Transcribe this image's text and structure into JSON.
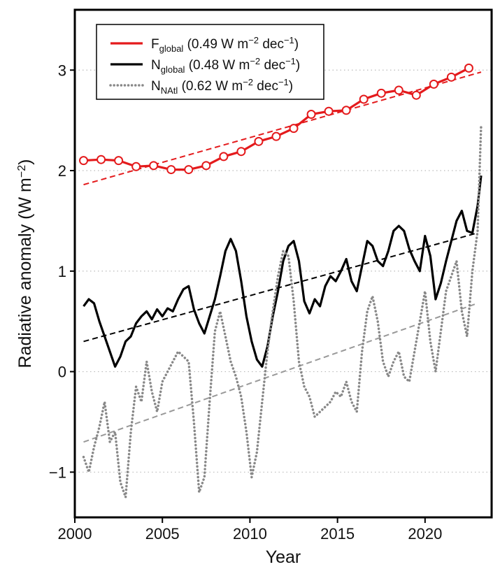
{
  "chart_data": {
    "type": "line",
    "xlabel": "Year",
    "ylabel": {
      "base": "Radiative anomaly (W m",
      "sup": "−2",
      "close": ")"
    },
    "xlim": [
      2000,
      2023.8
    ],
    "ylim": [
      -1.45,
      3.6
    ],
    "x_ticks": [
      2000,
      2005,
      2010,
      2015,
      2020
    ],
    "x_tick_labels": [
      "2000",
      "2005",
      "2010",
      "2015",
      "2020"
    ],
    "y_ticks": [
      -1,
      0,
      1,
      2,
      3
    ],
    "y_tick_labels": [
      "−1",
      "0",
      "1",
      "2",
      "3"
    ],
    "grid": "horizontal dotted",
    "legend_position": "top-left",
    "colors": {
      "F_global": "#e41a1c",
      "N_global": "#000000",
      "N_NAtl": "#888888",
      "N_NAtl_trend": "#999999"
    },
    "series": [
      {
        "key": "F_global",
        "legend": {
          "symbol": "F",
          "sub": "global",
          "pre": " (0.49 W m",
          "sup": "−2",
          "mid": " dec",
          "sup2": "−1",
          "post": ")"
        },
        "style": "solid-markers",
        "x": [
          2000.5,
          2001.5,
          2002.5,
          2003.5,
          2004.5,
          2005.5,
          2006.5,
          2007.5,
          2008.5,
          2009.5,
          2010.5,
          2011.5,
          2012.5,
          2013.5,
          2014.5,
          2015.5,
          2016.5,
          2017.5,
          2018.5,
          2019.5,
          2020.5,
          2021.5,
          2022.5
        ],
        "values": [
          2.1,
          2.11,
          2.1,
          2.04,
          2.05,
          2.01,
          2.01,
          2.05,
          2.14,
          2.19,
          2.29,
          2.34,
          2.42,
          2.56,
          2.59,
          2.6,
          2.71,
          2.77,
          2.8,
          2.75,
          2.86,
          2.93,
          3.02
        ],
        "trend": {
          "x": [
            2000.5,
            2023.2
          ],
          "y": [
            1.86,
            2.98
          ]
        }
      },
      {
        "key": "N_global",
        "legend": {
          "symbol": "N",
          "sub": "global",
          "pre": " (0.48 W m",
          "sup": "−2",
          "mid": " dec",
          "sup2": "−1",
          "post": ")"
        },
        "style": "solid",
        "x": [
          2000.5,
          2000.8,
          2001.1,
          2001.4,
          2001.7,
          2002.0,
          2002.3,
          2002.6,
          2002.9,
          2003.2,
          2003.5,
          2003.8,
          2004.1,
          2004.4,
          2004.7,
          2005.0,
          2005.3,
          2005.6,
          2005.9,
          2006.2,
          2006.5,
          2006.8,
          2007.1,
          2007.4,
          2007.7,
          2008.0,
          2008.3,
          2008.6,
          2008.9,
          2009.2,
          2009.5,
          2009.8,
          2010.1,
          2010.4,
          2010.7,
          2011.0,
          2011.3,
          2011.6,
          2011.9,
          2012.2,
          2012.5,
          2012.8,
          2013.1,
          2013.4,
          2013.7,
          2014.0,
          2014.3,
          2014.6,
          2014.9,
          2015.2,
          2015.5,
          2015.8,
          2016.1,
          2016.4,
          2016.7,
          2017.0,
          2017.3,
          2017.6,
          2017.9,
          2018.2,
          2018.5,
          2018.8,
          2019.1,
          2019.4,
          2019.7,
          2020.0,
          2020.3,
          2020.6,
          2020.9,
          2021.2,
          2021.5,
          2021.8,
          2022.1,
          2022.4,
          2022.7,
          2023.0,
          2023.2
        ],
        "values": [
          0.65,
          0.72,
          0.68,
          0.5,
          0.35,
          0.2,
          0.05,
          0.15,
          0.3,
          0.35,
          0.48,
          0.55,
          0.6,
          0.52,
          0.62,
          0.55,
          0.63,
          0.6,
          0.72,
          0.82,
          0.85,
          0.62,
          0.48,
          0.38,
          0.55,
          0.72,
          0.95,
          1.2,
          1.32,
          1.2,
          0.9,
          0.55,
          0.3,
          0.12,
          0.05,
          0.25,
          0.55,
          0.8,
          1.1,
          1.25,
          1.3,
          1.1,
          0.7,
          0.58,
          0.72,
          0.65,
          0.85,
          0.95,
          0.9,
          1.0,
          1.12,
          0.9,
          0.8,
          1.05,
          1.3,
          1.25,
          1.1,
          1.05,
          1.2,
          1.4,
          1.45,
          1.4,
          1.22,
          1.1,
          1.0,
          1.35,
          1.15,
          0.72,
          0.88,
          1.1,
          1.3,
          1.5,
          1.6,
          1.4,
          1.38,
          1.65,
          1.95
        ],
        "trend": {
          "x": [
            2000.5,
            2023.0
          ],
          "y": [
            0.3,
            1.38
          ]
        }
      },
      {
        "key": "N_NAtl",
        "legend": {
          "symbol": "N",
          "sub": "NAtl",
          "pre": " (0.62 W m",
          "sup": "−2",
          "mid": " dec",
          "sup2": "−1",
          "post": ")"
        },
        "style": "dotted",
        "x": [
          2000.5,
          2000.8,
          2001.1,
          2001.4,
          2001.7,
          2002.0,
          2002.3,
          2002.6,
          2002.9,
          2003.2,
          2003.5,
          2003.8,
          2004.1,
          2004.4,
          2004.7,
          2005.0,
          2005.3,
          2005.6,
          2005.9,
          2006.2,
          2006.5,
          2006.8,
          2007.1,
          2007.4,
          2007.7,
          2008.0,
          2008.3,
          2008.6,
          2008.9,
          2009.2,
          2009.5,
          2009.8,
          2010.1,
          2010.4,
          2010.7,
          2011.0,
          2011.3,
          2011.6,
          2011.9,
          2012.2,
          2012.5,
          2012.8,
          2013.1,
          2013.4,
          2013.7,
          2014.0,
          2014.3,
          2014.6,
          2014.9,
          2015.2,
          2015.5,
          2015.8,
          2016.1,
          2016.4,
          2016.7,
          2017.0,
          2017.3,
          2017.6,
          2017.9,
          2018.2,
          2018.5,
          2018.8,
          2019.1,
          2019.4,
          2019.7,
          2020.0,
          2020.3,
          2020.6,
          2020.9,
          2021.2,
          2021.5,
          2021.8,
          2022.1,
          2022.4,
          2022.7,
          2023.0,
          2023.2
        ],
        "values": [
          -0.85,
          -1.0,
          -0.75,
          -0.55,
          -0.3,
          -0.7,
          -0.6,
          -1.1,
          -1.25,
          -0.6,
          -0.15,
          -0.3,
          0.1,
          -0.2,
          -0.4,
          -0.1,
          0.0,
          0.1,
          0.2,
          0.15,
          0.1,
          -0.5,
          -1.2,
          -1.05,
          -0.3,
          0.4,
          0.6,
          0.35,
          0.1,
          -0.05,
          -0.25,
          -0.6,
          -1.05,
          -0.8,
          -0.3,
          0.2,
          0.6,
          0.95,
          1.2,
          1.15,
          0.7,
          0.1,
          -0.15,
          -0.25,
          -0.45,
          -0.4,
          -0.35,
          -0.3,
          -0.2,
          -0.25,
          -0.1,
          -0.3,
          -0.4,
          0.2,
          0.6,
          0.75,
          0.5,
          0.1,
          -0.05,
          0.1,
          0.2,
          -0.05,
          -0.1,
          0.2,
          0.5,
          0.8,
          0.3,
          0.0,
          0.4,
          0.8,
          0.95,
          1.1,
          0.6,
          0.35,
          1.0,
          1.4,
          2.45
        ],
        "trend": {
          "x": [
            2000.5,
            2023.0
          ],
          "y": [
            -0.7,
            0.68
          ]
        }
      }
    ]
  }
}
